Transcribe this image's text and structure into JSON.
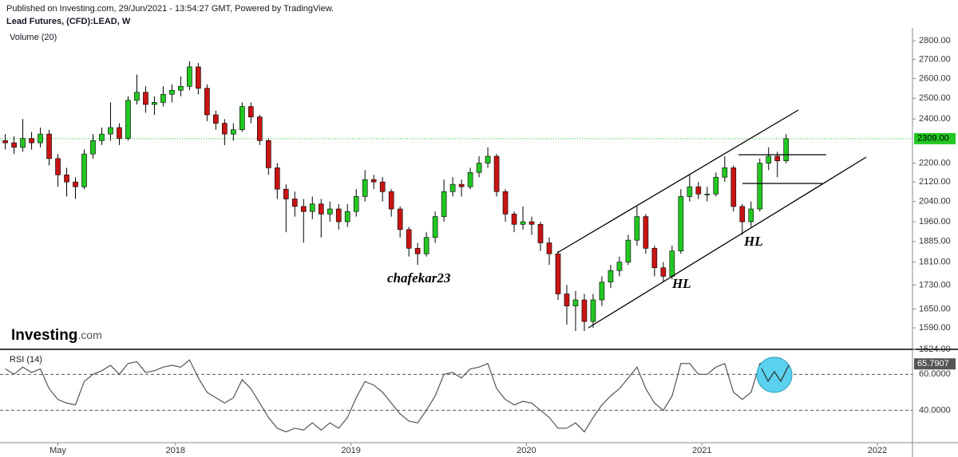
{
  "chart_data": {
    "type": "candlestick",
    "subtitle": "Published on Investing.com, 29/Jun/2021 - 13:54:27 GMT, Powered by TradingView.",
    "title": "Lead Futures, (CFD):LEAD, W",
    "volume_label": "Volume (20)",
    "logo": {
      "main": "Investing",
      "suffix": ".com"
    },
    "annotations": [
      "chafekar23",
      "HL",
      "HL"
    ],
    "up_color": "#22c722",
    "down_color": "#c81414",
    "log_scale": true,
    "x": [
      2017.03,
      2017.08,
      2017.13,
      2017.18,
      2017.23,
      2017.28,
      2017.33,
      2017.38,
      2017.43,
      2017.48,
      2017.53,
      2017.58,
      2017.63,
      2017.68,
      2017.73,
      2017.78,
      2017.83,
      2017.88,
      2017.93,
      2017.98,
      2018.03,
      2018.08,
      2018.13,
      2018.18,
      2018.23,
      2018.28,
      2018.33,
      2018.38,
      2018.43,
      2018.48,
      2018.53,
      2018.58,
      2018.63,
      2018.68,
      2018.73,
      2018.78,
      2018.83,
      2018.88,
      2018.93,
      2018.98,
      2019.03,
      2019.08,
      2019.13,
      2019.18,
      2019.23,
      2019.28,
      2019.33,
      2019.38,
      2019.43,
      2019.48,
      2019.53,
      2019.58,
      2019.63,
      2019.68,
      2019.73,
      2019.78,
      2019.83,
      2019.88,
      2019.93,
      2019.98,
      2020.03,
      2020.08,
      2020.13,
      2020.18,
      2020.23,
      2020.28,
      2020.33,
      2020.38,
      2020.43,
      2020.48,
      2020.53,
      2020.58,
      2020.63,
      2020.68,
      2020.73,
      2020.78,
      2020.83,
      2020.88,
      2020.93,
      2020.98,
      2021.03,
      2021.08,
      2021.13,
      2021.18,
      2021.23,
      2021.28,
      2021.33,
      2021.38,
      2021.43,
      2021.48
    ],
    "open": [
      2300,
      2290,
      2270,
      2310,
      2290,
      2330,
      2220,
      2150,
      2120,
      2100,
      2240,
      2300,
      2330,
      2360,
      2310,
      2490,
      2530,
      2470,
      2480,
      2520,
      2540,
      2560,
      2660,
      2550,
      2420,
      2380,
      2330,
      2350,
      2460,
      2410,
      2300,
      2180,
      2090,
      2050,
      2020,
      2000,
      2030,
      1990,
      2010,
      1960,
      2000,
      2060,
      2130,
      2120,
      2080,
      2010,
      1930,
      1860,
      1840,
      1900,
      1980,
      2080,
      2110,
      2100,
      2160,
      2200,
      2230,
      2080,
      1990,
      1950,
      1960,
      1950,
      1880,
      1840,
      1700,
      1660,
      1680,
      1610,
      1680,
      1740,
      1780,
      1810,
      1890,
      1980,
      1860,
      1790,
      1760,
      1850,
      2060,
      2100,
      2070,
      2070,
      2140,
      2180,
      2020,
      1960,
      2010,
      2200,
      2230,
      2210
    ],
    "high": [
      2330,
      2320,
      2400,
      2340,
      2360,
      2350,
      2240,
      2180,
      2140,
      2260,
      2330,
      2360,
      2480,
      2380,
      2510,
      2620,
      2560,
      2510,
      2560,
      2570,
      2610,
      2690,
      2680,
      2570,
      2440,
      2400,
      2380,
      2480,
      2480,
      2420,
      2310,
      2200,
      2110,
      2080,
      2050,
      2060,
      2050,
      2040,
      2030,
      2030,
      2090,
      2170,
      2150,
      2140,
      2090,
      2020,
      1940,
      1880,
      1920,
      2000,
      2130,
      2140,
      2130,
      2180,
      2230,
      2270,
      2240,
      2090,
      2000,
      2020,
      1980,
      1960,
      1900,
      1850,
      1730,
      1710,
      1700,
      1700,
      1760,
      1800,
      1830,
      1910,
      2020,
      1990,
      1870,
      1810,
      1870,
      2090,
      2150,
      2120,
      2100,
      2160,
      2230,
      2190,
      2030,
      2040,
      2220,
      2270,
      2250,
      2330
    ],
    "low": [
      2260,
      2240,
      2250,
      2260,
      2270,
      2190,
      2100,
      2060,
      2050,
      2090,
      2220,
      2280,
      2300,
      2280,
      2300,
      2470,
      2430,
      2420,
      2460,
      2480,
      2510,
      2540,
      2520,
      2390,
      2350,
      2280,
      2300,
      2340,
      2380,
      2280,
      2150,
      2050,
      1920,
      1980,
      1880,
      1970,
      1900,
      1960,
      1930,
      1940,
      1980,
      2040,
      2090,
      2040,
      1980,
      1900,
      1830,
      1800,
      1830,
      1880,
      1960,
      2060,
      2060,
      2090,
      2140,
      2180,
      2060,
      1960,
      1920,
      1930,
      1910,
      1850,
      1800,
      1680,
      1600,
      1580,
      1580,
      1590,
      1660,
      1720,
      1760,
      1800,
      1870,
      1840,
      1760,
      1740,
      1750,
      1840,
      2040,
      2050,
      2040,
      2060,
      2120,
      2000,
      1910,
      1940,
      2000,
      2170,
      2140,
      2200
    ],
    "close": [
      2290,
      2270,
      2310,
      2290,
      2330,
      2220,
      2150,
      2120,
      2100,
      2240,
      2300,
      2330,
      2360,
      2310,
      2490,
      2530,
      2470,
      2480,
      2520,
      2540,
      2560,
      2660,
      2550,
      2420,
      2380,
      2330,
      2350,
      2460,
      2410,
      2300,
      2180,
      2090,
      2050,
      2020,
      2000,
      2030,
      1990,
      2010,
      1960,
      2000,
      2060,
      2130,
      2120,
      2080,
      2010,
      1930,
      1860,
      1840,
      1900,
      1980,
      2080,
      2110,
      2100,
      2160,
      2200,
      2230,
      2080,
      1990,
      1950,
      1960,
      1950,
      1880,
      1840,
      1700,
      1660,
      1680,
      1610,
      1680,
      1740,
      1780,
      1810,
      1890,
      1980,
      1860,
      1790,
      1760,
      1850,
      2060,
      2100,
      2070,
      2070,
      2140,
      2180,
      2020,
      1960,
      2010,
      2200,
      2230,
      2210,
      2309
    ],
    "ylim": [
      1524,
      2850
    ],
    "yticks": [
      {
        "value": 1524,
        "label": "1524.00"
      },
      {
        "value": 1590,
        "label": "1590.00"
      },
      {
        "value": 1650,
        "label": "1650.00"
      },
      {
        "value": 1730,
        "label": "1730.00"
      },
      {
        "value": 1810,
        "label": "1810.00"
      },
      {
        "value": 1885,
        "label": "1885.00"
      },
      {
        "value": 1960,
        "label": "1960.00"
      },
      {
        "value": 2040,
        "label": "2040.00"
      },
      {
        "value": 2120,
        "label": "2120.00"
      },
      {
        "value": 2200,
        "label": "2200.00"
      },
      {
        "value": 2400,
        "label": "2400.00"
      },
      {
        "value": 2500,
        "label": "2500.00"
      },
      {
        "value": 2600,
        "label": "2600.00"
      },
      {
        "value": 2700,
        "label": "2700.00"
      },
      {
        "value": 2800,
        "label": "2800.00"
      }
    ],
    "last_price": {
      "value": 2309,
      "label": "2309.00",
      "color": "#22c722"
    },
    "xlim": [
      2017,
      2022.2
    ],
    "xticks": [
      {
        "value": 2017.33,
        "label": "May"
      },
      2018,
      2019,
      2020,
      2021,
      2022
    ],
    "rsi": {
      "label": "RSI (14)",
      "color": "#555555",
      "values": [
        63,
        60,
        64,
        61,
        63,
        52,
        46,
        44,
        43,
        56,
        60,
        62,
        65,
        60,
        66,
        67,
        61,
        62,
        64,
        65,
        64,
        68,
        58,
        50,
        47,
        44,
        47,
        57,
        52,
        44,
        36,
        30,
        28,
        30,
        29,
        33,
        29,
        33,
        30,
        36,
        47,
        56,
        54,
        50,
        44,
        38,
        34,
        33,
        40,
        48,
        60,
        61,
        58,
        63,
        64,
        66,
        52,
        46,
        43,
        45,
        44,
        40,
        36,
        30,
        30,
        33,
        28,
        36,
        43,
        48,
        52,
        58,
        64,
        52,
        44,
        40,
        48,
        66,
        66,
        60,
        60,
        64,
        66,
        50,
        46,
        50,
        66,
        67,
        62,
        65.7907
      ],
      "value_label": "65.7907",
      "ylim": [
        22,
        73
      ],
      "yticks": [
        {
          "value": 40,
          "label": "40.0000"
        },
        {
          "value": 60,
          "label": "60.0000"
        }
      ]
    }
  }
}
